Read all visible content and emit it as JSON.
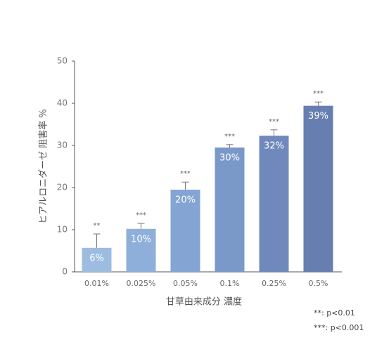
{
  "chart_data": {
    "type": "bar",
    "categories": [
      "0.01%",
      "0.025%",
      "0.05%",
      "0.1%",
      "0.25%",
      "0.5%"
    ],
    "values": [
      5.7,
      10.2,
      19.5,
      29.5,
      32.3,
      39.4
    ],
    "value_labels": [
      "6%",
      "10%",
      "20%",
      "30%",
      "32%",
      "39%"
    ],
    "errors": [
      3.3,
      1.3,
      1.8,
      0.7,
      1.4,
      0.9
    ],
    "significance": [
      "**",
      "***",
      "***",
      "***",
      "***",
      "***"
    ],
    "colors": [
      "#9dbde0",
      "#8eafda",
      "#84a4d3",
      "#7a98c8",
      "#7089bd",
      "#667eb0"
    ],
    "ylim": [
      0,
      50
    ],
    "yticks": [
      0,
      10,
      20,
      30,
      40,
      50
    ],
    "grid": false,
    "x_label": "甘草由来成分 濃度",
    "y_label": "ヒアルロニダーゼ 阻害率 %",
    "notes": [
      "**: p<0.01",
      "***: p<0.001"
    ]
  }
}
